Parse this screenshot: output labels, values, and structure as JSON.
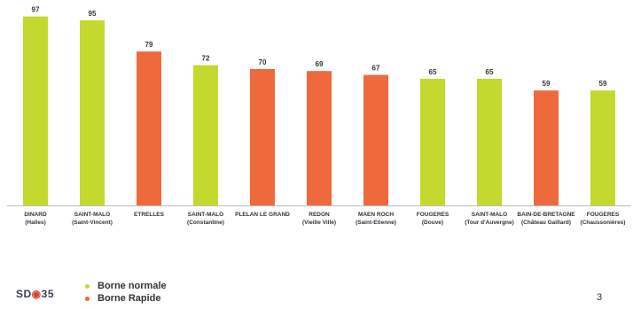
{
  "chart_data": {
    "type": "bar",
    "categories": [
      [
        "DINARD",
        "(Halles)"
      ],
      [
        "SAINT-MALO",
        "(Saint-Vincent)"
      ],
      [
        "ETRELLES",
        ""
      ],
      [
        "SAINT-MALO",
        "(Constantine)"
      ],
      [
        "PLELAN LE GRAND",
        ""
      ],
      [
        "REDON",
        "(Vieille Ville)"
      ],
      [
        "MAEN ROCH",
        "(Saint-Etienne)"
      ],
      [
        "FOUGERES",
        "(Douve)"
      ],
      [
        "SAINT-MALO",
        "(Tour d'Auvergne)"
      ],
      [
        "BAIN-DE-BRETAGNE",
        "(Château Gaillard)"
      ],
      [
        "FOUGERES",
        "(Chaussonières)"
      ]
    ],
    "values": [
      97,
      95,
      79,
      72,
      70,
      69,
      67,
      65,
      65,
      59,
      59
    ],
    "bar_types": [
      "normale",
      "normale",
      "rapide",
      "normale",
      "rapide",
      "rapide",
      "rapide",
      "normale",
      "normale",
      "rapide",
      "normale"
    ],
    "colors": {
      "normale": "#c4d82e",
      "rapide": "#ee6a3c"
    },
    "ylim": [
      0,
      100
    ],
    "grid": false,
    "legend_placement": "bottom-left"
  },
  "legend": [
    {
      "label": "Borne normale",
      "key": "normale"
    },
    {
      "label": "Borne Rapide",
      "key": "rapide"
    }
  ],
  "logo": {
    "left": "SD",
    "mid": "◉",
    "right": "35"
  },
  "page_number": "3"
}
